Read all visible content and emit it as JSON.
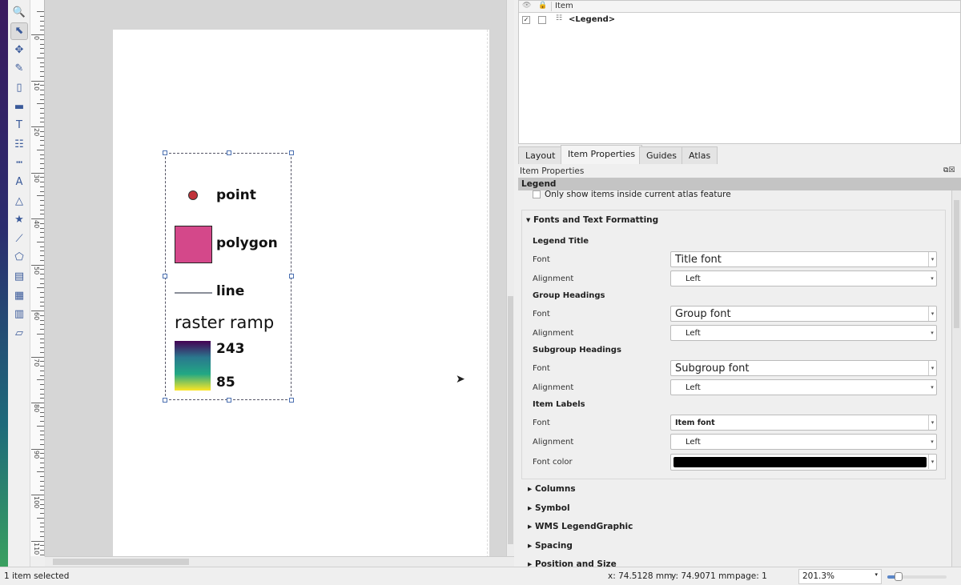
{
  "toolbar": {
    "tools": [
      "zoom-icon",
      "select-move-icon",
      "move-content-icon",
      "edit-nodes-icon",
      "add-map-icon",
      "add-picture-icon",
      "add-label-icon",
      "add-legend-icon",
      "add-scalebar-icon",
      "add-north-arrow-icon",
      "add-shape-icon",
      "add-marker-icon",
      "add-polyline-icon",
      "add-polygon-icon",
      "add-html-icon",
      "add-attribute-table-icon",
      "add-fixed-table-icon",
      "add-3d-map-icon"
    ]
  },
  "ruler": {
    "labels": [
      "0",
      "10",
      "20",
      "30",
      "40",
      "50",
      "60",
      "70",
      "80",
      "90",
      "100",
      "110"
    ]
  },
  "legend": {
    "items": [
      {
        "label": "point",
        "color": "#c0323a"
      },
      {
        "label": "polygon",
        "color": "#d4488a"
      },
      {
        "label": "line",
        "color": "#8a8e99"
      }
    ],
    "group": "raster ramp",
    "ramp_max": "243",
    "ramp_min": "85",
    "ramp_colors": [
      "#440154",
      "#2a788e",
      "#22a884",
      "#fde725"
    ]
  },
  "items_panel": {
    "header": "Item",
    "rows": [
      {
        "visible": true,
        "locked": false,
        "name": "<Legend>"
      }
    ]
  },
  "tabs": [
    {
      "label": "Layout"
    },
    {
      "label": "Item Properties",
      "active": true
    },
    {
      "label": "Guides"
    },
    {
      "label": "Atlas"
    }
  ],
  "props": {
    "title": "Item Properties",
    "item": "Legend",
    "atlas_only": "Only show items inside current atlas feature",
    "section": "Fonts and Text Formatting",
    "groups": [
      {
        "heading": "Legend Title",
        "font_label": "Font",
        "font": "Title font",
        "align_label": "Alignment",
        "align": "Left"
      },
      {
        "heading": "Group Headings",
        "font_label": "Font",
        "font": "Group font",
        "align_label": "Alignment",
        "align": "Left"
      },
      {
        "heading": "Subgroup Headings",
        "font_label": "Font",
        "font": "Subgroup font",
        "align_label": "Alignment",
        "align": "Left"
      },
      {
        "heading": "Item Labels",
        "font_label": "Font",
        "font": "Item font",
        "align_label": "Alignment",
        "align": "Left"
      }
    ],
    "font_color_label": "Font color",
    "font_color": "#000000",
    "collapsed": [
      "Columns",
      "Symbol",
      "WMS LegendGraphic",
      "Spacing",
      "Position and Size"
    ]
  },
  "status": {
    "selection": "1 item selected",
    "x": "x: 74.5128 mm",
    "y": "y: 74.9071 mm",
    "page": "page: 1",
    "zoom": "201.3%",
    "zoom_slider": 0.15
  }
}
